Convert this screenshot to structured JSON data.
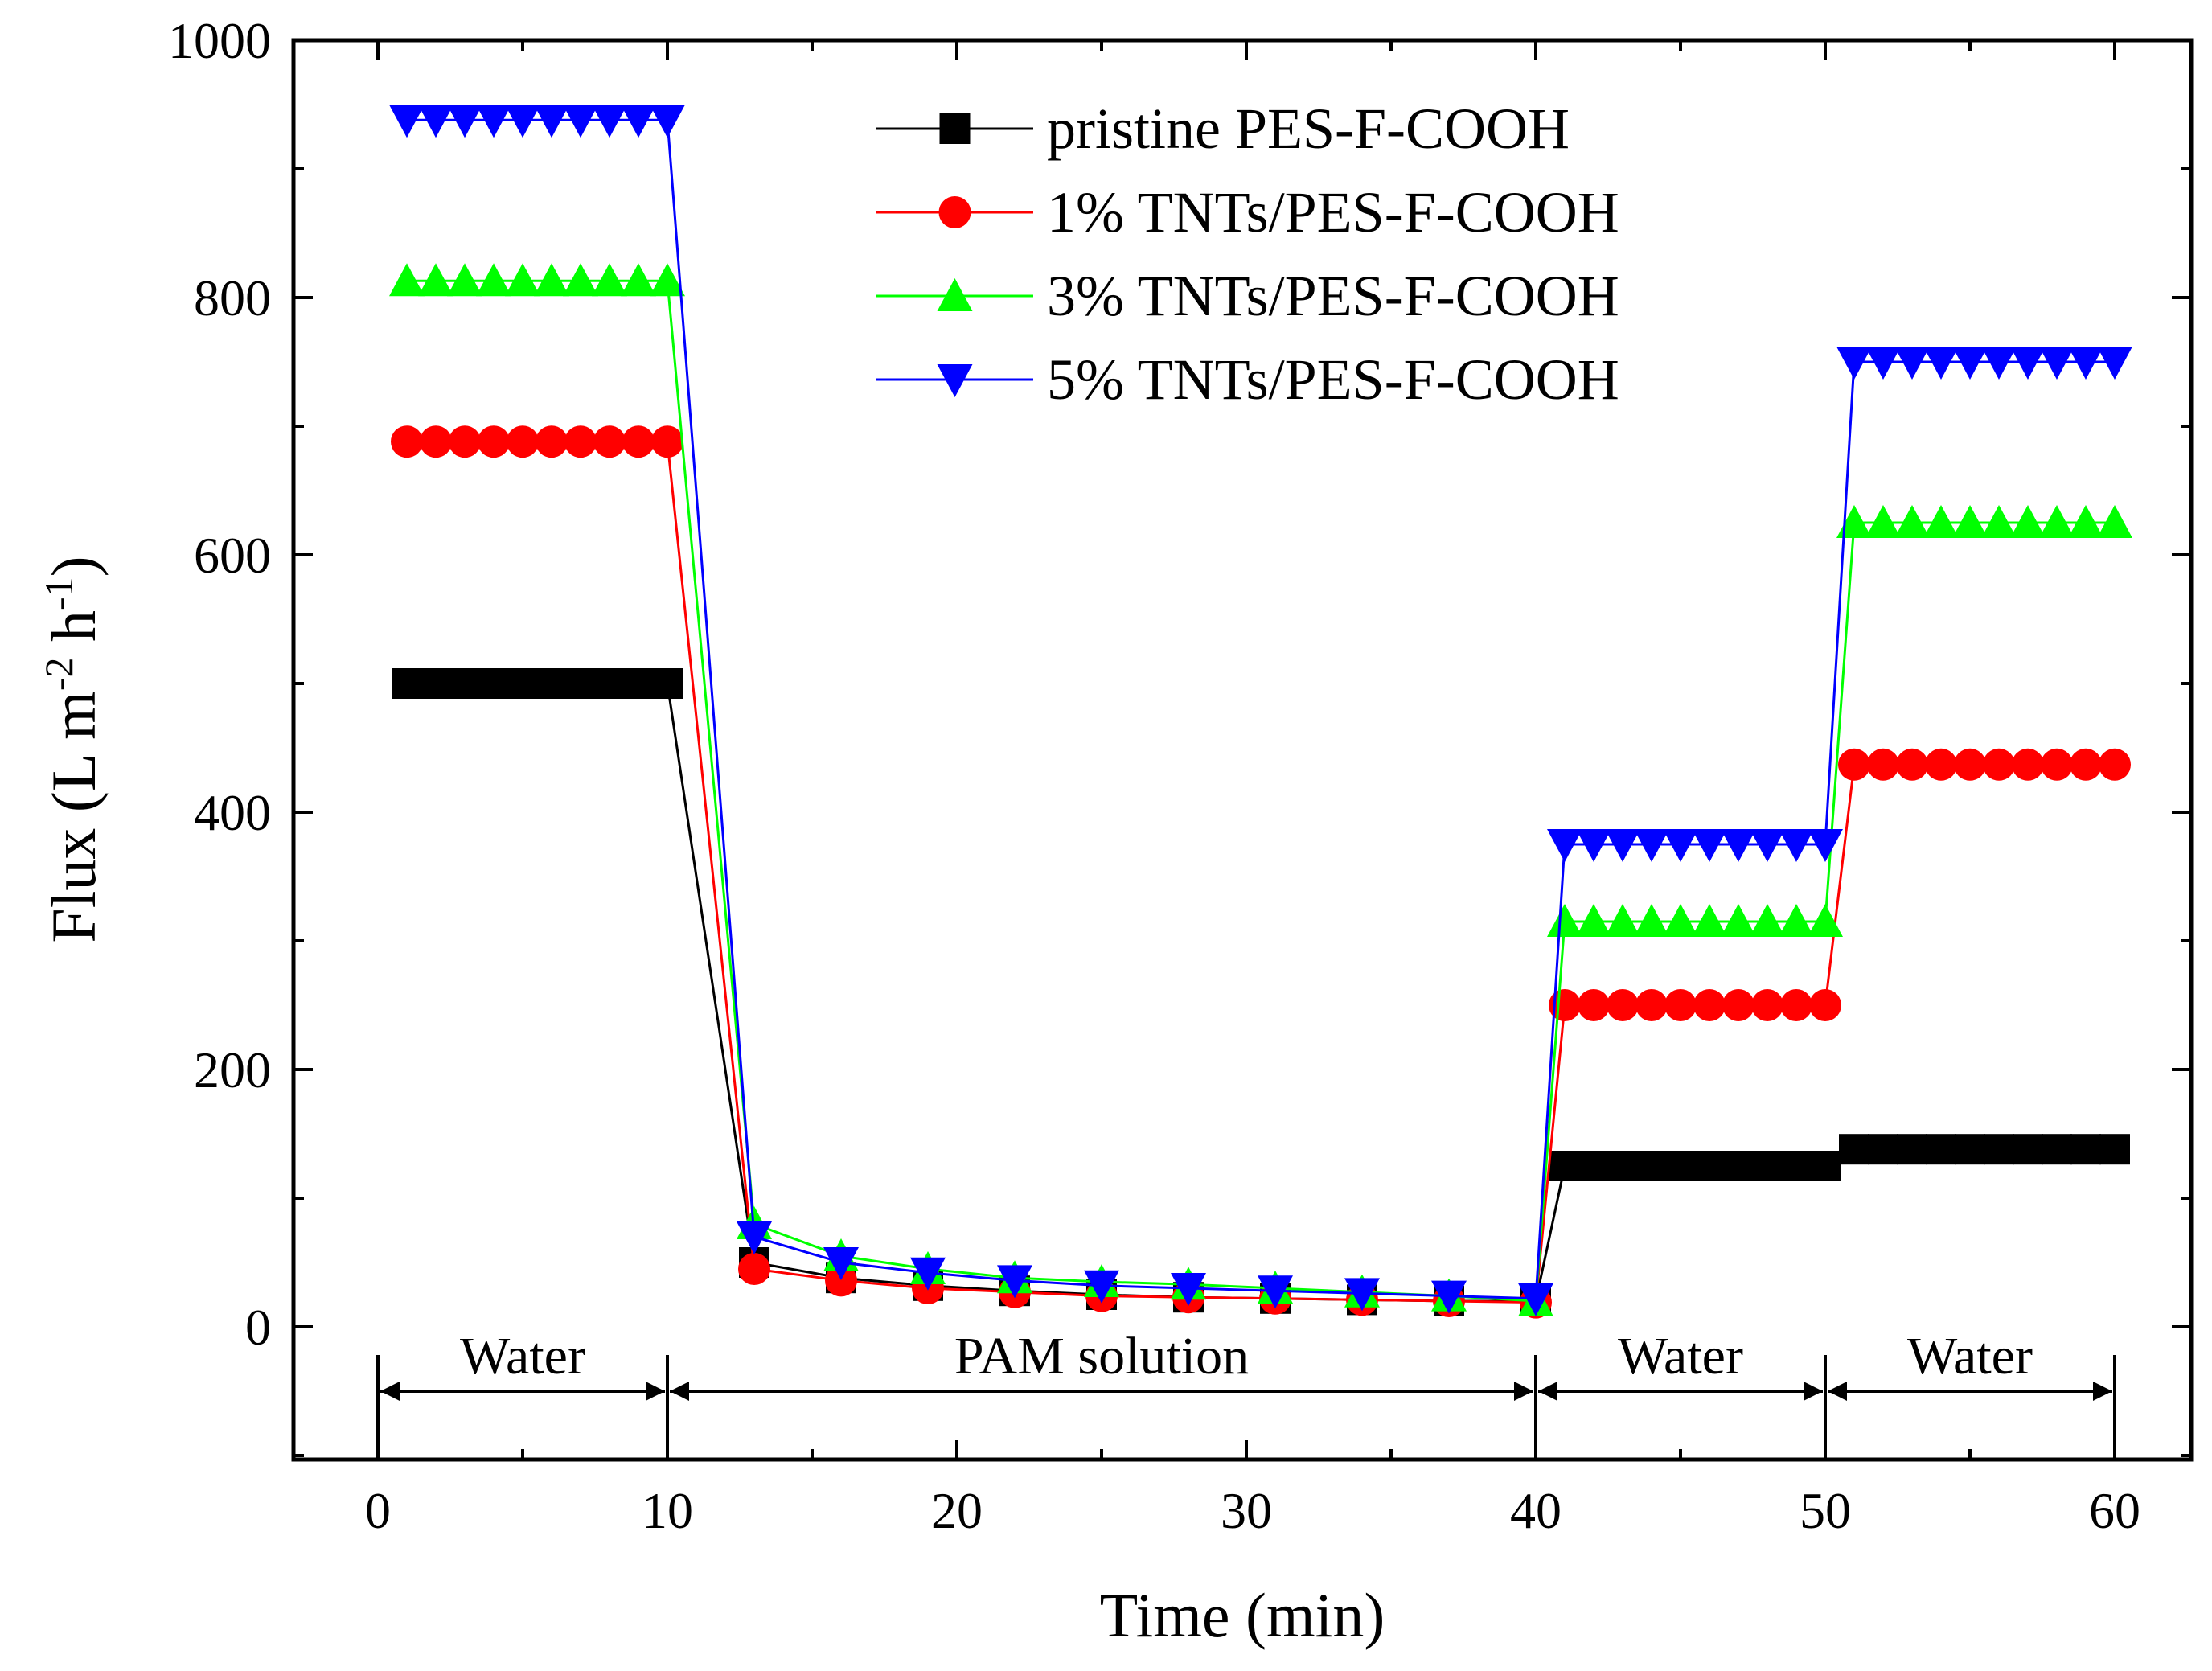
{
  "chart_data": {
    "type": "line",
    "title": "",
    "xlabel": "Time (min)",
    "ylabel": {
      "main": "Flux (L m",
      "sup1": "-2",
      "mid": " h",
      "sup2": "-1",
      "end": ")"
    },
    "xlim": [
      -3,
      63
    ],
    "ylim": [
      -100,
      1000
    ],
    "xticks": [
      0,
      10,
      20,
      30,
      40,
      50,
      60
    ],
    "yticks": [
      0,
      200,
      400,
      600,
      800,
      1000
    ],
    "legend_position": "top-right",
    "series": [
      {
        "name": "pristine PES-F-COOH",
        "color": "#000000",
        "marker": "square",
        "x": [
          1,
          2,
          3,
          4,
          5,
          6,
          7,
          8,
          9,
          10,
          13,
          16,
          19,
          22,
          25,
          28,
          31,
          34,
          37,
          40,
          41,
          42,
          43,
          44,
          45,
          46,
          47,
          48,
          49,
          50,
          51,
          52,
          53,
          54,
          55,
          56,
          57,
          58,
          59,
          60
        ],
        "y": [
          500,
          500,
          500,
          500,
          500,
          500,
          500,
          500,
          500,
          500,
          50,
          38,
          32,
          28,
          25,
          23,
          22,
          21,
          20,
          20,
          125,
          125,
          125,
          125,
          125,
          125,
          125,
          125,
          125,
          125,
          138,
          138,
          138,
          138,
          138,
          138,
          138,
          138,
          138,
          138
        ]
      },
      {
        "name": "1% TNTs/PES-F-COOH",
        "color": "#ff0000",
        "marker": "circle",
        "x": [
          1,
          2,
          3,
          4,
          5,
          6,
          7,
          8,
          9,
          10,
          13,
          16,
          19,
          22,
          25,
          28,
          31,
          34,
          37,
          40,
          41,
          42,
          43,
          44,
          45,
          46,
          47,
          48,
          49,
          50,
          51,
          52,
          53,
          54,
          55,
          56,
          57,
          58,
          59,
          60
        ],
        "y": [
          688,
          688,
          688,
          688,
          688,
          688,
          688,
          688,
          688,
          688,
          45,
          36,
          30,
          27,
          24,
          23,
          22,
          21,
          20,
          19,
          250,
          250,
          250,
          250,
          250,
          250,
          250,
          250,
          250,
          250,
          437,
          437,
          437,
          437,
          437,
          437,
          437,
          437,
          437,
          437
        ]
      },
      {
        "name": "3% TNTs/PES-F-COOH",
        "color": "#00ff00",
        "marker": "triangle-up",
        "x": [
          1,
          2,
          3,
          4,
          5,
          6,
          7,
          8,
          9,
          10,
          13,
          16,
          19,
          22,
          25,
          28,
          31,
          34,
          37,
          40,
          41,
          42,
          43,
          44,
          45,
          46,
          47,
          48,
          49,
          50,
          51,
          52,
          53,
          54,
          55,
          56,
          57,
          58,
          59,
          60
        ],
        "y": [
          813,
          813,
          813,
          813,
          813,
          813,
          813,
          813,
          813,
          813,
          80,
          55,
          45,
          38,
          35,
          33,
          30,
          27,
          24,
          20,
          315,
          315,
          315,
          315,
          315,
          315,
          315,
          315,
          315,
          315,
          625,
          625,
          625,
          625,
          625,
          625,
          625,
          625,
          625,
          625
        ]
      },
      {
        "name": "5% TNTs/PES-F-COOH",
        "color": "#0000ff",
        "marker": "triangle-down",
        "x": [
          1,
          2,
          3,
          4,
          5,
          6,
          7,
          8,
          9,
          10,
          13,
          16,
          19,
          22,
          25,
          28,
          31,
          34,
          37,
          40,
          41,
          42,
          43,
          44,
          45,
          46,
          47,
          48,
          49,
          50,
          51,
          52,
          53,
          54,
          55,
          56,
          57,
          58,
          59,
          60
        ],
        "y": [
          938,
          938,
          938,
          938,
          938,
          938,
          938,
          938,
          938,
          938,
          70,
          50,
          42,
          36,
          32,
          30,
          28,
          26,
          24,
          22,
          375,
          375,
          375,
          375,
          375,
          375,
          375,
          375,
          375,
          375,
          750,
          750,
          750,
          750,
          750,
          750,
          750,
          750,
          750,
          750
        ]
      }
    ],
    "annotations": [
      {
        "label": "Water",
        "x_start": 0,
        "x_end": 10
      },
      {
        "label": "PAM solution",
        "x_start": 10,
        "x_end": 40
      },
      {
        "label": "Water",
        "x_start": 40,
        "x_end": 50
      },
      {
        "label": "Water",
        "x_start": 50,
        "x_end": 60
      }
    ]
  }
}
